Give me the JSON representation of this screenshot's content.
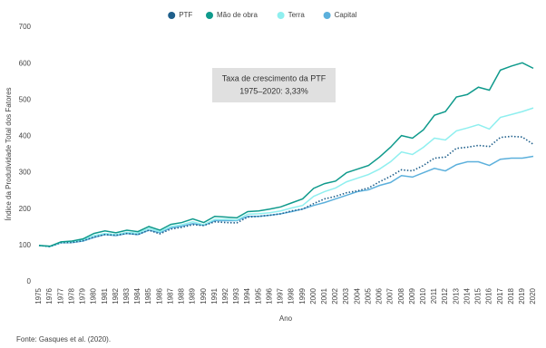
{
  "chart_data": {
    "type": "line",
    "annotation": [
      "Taxa de crescimento da PTF",
      "1975–2020: 3,33%"
    ],
    "y_label": "Índice da Produtividade Total dos Fatores",
    "x_label": "Ano",
    "source": "Fonte: Gasques et al. (2020).",
    "x": [
      1975,
      1976,
      1977,
      1978,
      1979,
      1980,
      1981,
      1982,
      1983,
      1984,
      1985,
      1986,
      1987,
      1988,
      1989,
      1990,
      1991,
      1992,
      1993,
      1994,
      1995,
      1996,
      1997,
      1998,
      1999,
      2000,
      2001,
      2002,
      2003,
      2004,
      2005,
      2006,
      2007,
      2008,
      2009,
      2010,
      2011,
      2012,
      2013,
      2014,
      2015,
      2016,
      2017,
      2018,
      2019,
      2020
    ],
    "xlim": [
      1975,
      2020
    ],
    "xticks": [
      1975,
      1976,
      1977,
      1978,
      1979,
      1980,
      1981,
      1982,
      1983,
      1984,
      1985,
      1986,
      1987,
      1988,
      1989,
      1990,
      1991,
      1992,
      1993,
      1994,
      1995,
      1996,
      1997,
      1998,
      1999,
      2000,
      2001,
      2002,
      2003,
      2004,
      2005,
      2006,
      2007,
      2008,
      2009,
      2010,
      2011,
      2012,
      2013,
      2014,
      2015,
      2016,
      2017,
      2018,
      2019,
      2020
    ],
    "ylim": [
      0,
      700
    ],
    "yticks": [
      0,
      100,
      200,
      300,
      400,
      500,
      600,
      700
    ],
    "grid": false,
    "series": [
      {
        "name": "PTF",
        "color": "#1f5f8b",
        "style": "dotted",
        "values": [
          100,
          97,
          108,
          108,
          113,
          123,
          130,
          128,
          133,
          130,
          142,
          132,
          145,
          150,
          157,
          155,
          165,
          163,
          162,
          178,
          180,
          183,
          187,
          195,
          200,
          215,
          228,
          235,
          245,
          250,
          258,
          275,
          290,
          308,
          305,
          320,
          340,
          343,
          367,
          370,
          375,
          372,
          397,
          400,
          398,
          378
        ]
      },
      {
        "name": "Mão de obra",
        "color": "#0f9a8c",
        "style": "solid",
        "values": [
          100,
          98,
          110,
          112,
          118,
          133,
          140,
          135,
          142,
          138,
          152,
          142,
          158,
          163,
          173,
          163,
          180,
          178,
          176,
          193,
          195,
          200,
          206,
          217,
          228,
          257,
          270,
          277,
          300,
          310,
          320,
          343,
          370,
          402,
          395,
          418,
          458,
          468,
          508,
          515,
          535,
          527,
          582,
          593,
          602,
          587
        ]
      },
      {
        "name": "Terra",
        "color": "#8fefef",
        "style": "solid",
        "values": [
          100,
          97,
          108,
          110,
          115,
          127,
          133,
          130,
          136,
          134,
          147,
          138,
          152,
          157,
          165,
          157,
          172,
          172,
          170,
          186,
          187,
          190,
          195,
          203,
          210,
          235,
          248,
          258,
          275,
          285,
          295,
          310,
          330,
          357,
          350,
          370,
          395,
          390,
          415,
          423,
          432,
          420,
          452,
          460,
          468,
          478
        ]
      },
      {
        "name": "Capital",
        "color": "#5cb0dc",
        "style": "solid",
        "values": [
          100,
          97,
          107,
          108,
          112,
          122,
          130,
          127,
          133,
          130,
          142,
          135,
          148,
          153,
          160,
          155,
          168,
          168,
          168,
          180,
          180,
          183,
          187,
          193,
          200,
          210,
          218,
          228,
          238,
          248,
          253,
          265,
          273,
          292,
          288,
          300,
          312,
          305,
          322,
          330,
          330,
          320,
          337,
          340,
          340,
          345
        ]
      }
    ]
  }
}
